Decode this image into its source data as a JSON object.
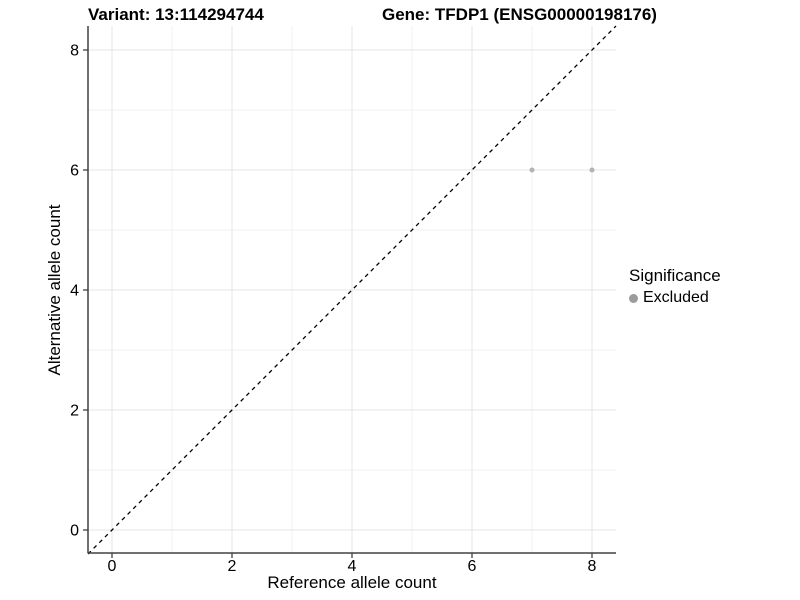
{
  "titles": {
    "variant": "Variant: 13:114294744",
    "gene": "Gene: TFDP1 (ENSG00000198176)"
  },
  "axes": {
    "x_label": "Reference allele count",
    "y_label": "Alternative allele count"
  },
  "legend": {
    "title": "Significance",
    "entries": [
      {
        "label": "Excluded",
        "color": "#9b9b9b"
      }
    ]
  },
  "colors": {
    "background": "#ffffff",
    "grid_major": "#e4e4e4",
    "grid_minor": "#f0f0f0",
    "axis_line": "#404040",
    "tick": "#404040",
    "identity_line": "#000000",
    "text": "#000000"
  },
  "chart_data": {
    "type": "scatter",
    "title": "Variant: 13:114294744 — Gene: TFDP1 (ENSG00000198176)",
    "xlabel": "Reference allele count",
    "ylabel": "Alternative allele count",
    "xlim": [
      -0.4,
      8.4
    ],
    "ylim": [
      -0.4,
      8.4
    ],
    "x_major_ticks": [
      0,
      2,
      4,
      6,
      8
    ],
    "x_minor_ticks": [
      1,
      3,
      5,
      7
    ],
    "y_major_ticks": [
      0,
      2,
      4,
      6,
      8
    ],
    "y_minor_ticks": [
      1,
      3,
      5,
      7
    ],
    "grid": true,
    "legend_position": "right",
    "legend_title": "Significance",
    "series": [
      {
        "name": "Excluded",
        "color": "#b3b3b3",
        "point_radius": 2.5,
        "points": [
          {
            "x": 7,
            "y": 6
          },
          {
            "x": 8,
            "y": 6
          }
        ]
      }
    ],
    "reference_line": {
      "type": "identity",
      "style": "dashed",
      "from": -0.4,
      "to": 8.4
    }
  }
}
